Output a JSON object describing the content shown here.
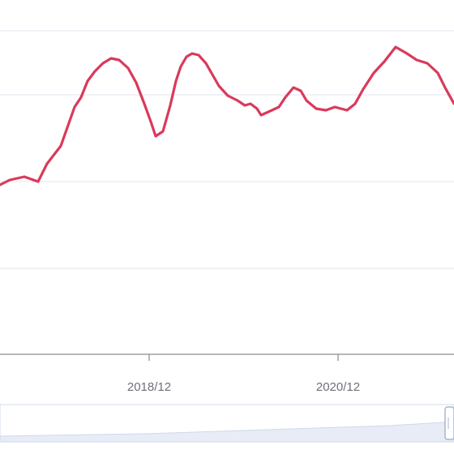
{
  "chart_data": {
    "type": "line",
    "title": "",
    "xlabel": "",
    "ylabel": "",
    "x_tick_labels": [
      "2018/12",
      "2020/12"
    ],
    "grid": true,
    "legend": "none",
    "colors": {
      "line": "#d93a5b",
      "grid": "#e0e6f1",
      "axis": "#6e7079",
      "slider_fill": "#e8ecf7",
      "slider_border": "#d2dbee",
      "slider_handle": "#a7b7cc"
    },
    "series": [
      {
        "values": [
          [
            0,
            228
          ],
          [
            12,
            222
          ],
          [
            30,
            218
          ],
          [
            47,
            224
          ],
          [
            58,
            202
          ],
          [
            75,
            180
          ],
          [
            92,
            132
          ],
          [
            100,
            120
          ],
          [
            108,
            100
          ],
          [
            117,
            88
          ],
          [
            127,
            78
          ],
          [
            137,
            72
          ],
          [
            147,
            74
          ],
          [
            158,
            84
          ],
          [
            168,
            102
          ],
          [
            178,
            128
          ],
          [
            186,
            150
          ],
          [
            192,
            168
          ],
          [
            201,
            162
          ],
          [
            210,
            130
          ],
          [
            217,
            100
          ],
          [
            223,
            82
          ],
          [
            230,
            70
          ],
          [
            237,
            66
          ],
          [
            245,
            68
          ],
          [
            254,
            78
          ],
          [
            262,
            92
          ],
          [
            270,
            106
          ],
          [
            281,
            118
          ],
          [
            293,
            124
          ],
          [
            302,
            130
          ],
          [
            309,
            128
          ],
          [
            317,
            134
          ],
          [
            322,
            142
          ],
          [
            331,
            138
          ],
          [
            344,
            132
          ],
          [
            352,
            120
          ],
          [
            362,
            108
          ],
          [
            371,
            112
          ],
          [
            378,
            124
          ],
          [
            390,
            134
          ],
          [
            402,
            136
          ],
          [
            413,
            132
          ],
          [
            428,
            136
          ],
          [
            438,
            128
          ],
          [
            448,
            110
          ],
          [
            461,
            90
          ],
          [
            474,
            76
          ],
          [
            488,
            58
          ],
          [
            502,
            66
          ],
          [
            514,
            74
          ],
          [
            527,
            78
          ],
          [
            540,
            90
          ],
          [
            549,
            108
          ],
          [
            560,
            128
          ]
        ]
      }
    ],
    "dataZoom": {
      "type": "slider"
    }
  }
}
